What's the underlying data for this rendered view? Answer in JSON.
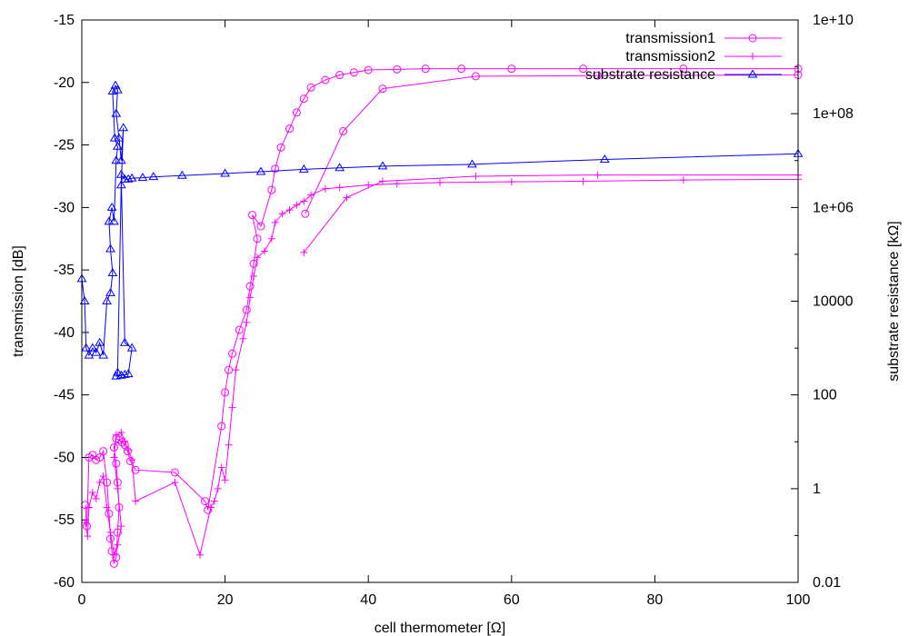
{
  "chart_data": {
    "type": "line",
    "title": "",
    "xlabel": "cell thermometer [Ω]",
    "ylabel": "transmission [dB]",
    "y2label": "substrate resistance [kΩ]",
    "xlim": [
      0,
      100
    ],
    "ylim": [
      -60,
      -15
    ],
    "y2lim": [
      0.01,
      10000000000
    ],
    "y2scale": "log",
    "grid": false,
    "legend_position": "top-right",
    "xticks": [
      "0",
      "20",
      "40",
      "60",
      "80",
      "100"
    ],
    "yticks": [
      "-15",
      "-20",
      "-25",
      "-30",
      "-35",
      "-40",
      "-45",
      "-50",
      "-55",
      "-60"
    ],
    "y2ticks": [
      "1e+10",
      "1e+08",
      "1e+06",
      "10000",
      "100",
      "1",
      "0.01"
    ],
    "series": [
      {
        "name": "transmission1",
        "axis": "y",
        "color": "#ff00ff",
        "marker": "circle",
        "points": [
          [
            0.5,
            -53.8
          ],
          [
            0.7,
            -55.5
          ],
          [
            1.0,
            -50.0
          ],
          [
            1.5,
            -49.8
          ],
          [
            2.0,
            -50.2
          ],
          [
            2.5,
            -50.0
          ],
          [
            3.0,
            -49.5
          ],
          [
            3.5,
            -52.0
          ],
          [
            3.8,
            -54.5
          ],
          [
            4.0,
            -56.5
          ],
          [
            4.2,
            -57.5
          ],
          [
            4.5,
            -58.5
          ],
          [
            4.8,
            -58.0
          ],
          [
            5.0,
            -56.0
          ],
          [
            5.2,
            -54.0
          ],
          [
            5.0,
            -52.0
          ],
          [
            4.8,
            -50.5
          ],
          [
            4.5,
            -49.2
          ],
          [
            4.8,
            -48.5
          ],
          [
            5.2,
            -48.6
          ],
          [
            5.6,
            -48.8
          ],
          [
            6.0,
            -49.0
          ],
          [
            6.4,
            -49.5
          ],
          [
            6.8,
            -50.3
          ],
          [
            7.5,
            -51.0
          ],
          [
            13.0,
            -51.2
          ],
          [
            17.2,
            -53.5
          ],
          [
            17.6,
            -54.2
          ],
          [
            19.5,
            -47.5
          ],
          [
            20.0,
            -44.8
          ],
          [
            20.5,
            -43.0
          ],
          [
            21.0,
            -41.7
          ],
          [
            22.0,
            -39.8
          ],
          [
            23.0,
            -38.2
          ],
          [
            23.5,
            -36.3
          ],
          [
            24.0,
            -34.5
          ],
          [
            24.5,
            -32.5
          ],
          [
            23.8,
            -30.6
          ],
          [
            25.0,
            -31.5
          ],
          [
            26.5,
            -28.6
          ],
          [
            27.0,
            -26.9
          ],
          [
            27.8,
            -25.2
          ],
          [
            29.0,
            -23.7
          ],
          [
            30.0,
            -22.4
          ],
          [
            31.0,
            -21.3
          ],
          [
            32.0,
            -20.4
          ],
          [
            34.0,
            -19.8
          ],
          [
            36.0,
            -19.4
          ],
          [
            38.0,
            -19.2
          ],
          [
            40.0,
            -19.0
          ],
          [
            44.0,
            -18.95
          ],
          [
            48.0,
            -18.9
          ],
          [
            53.0,
            -18.9
          ],
          [
            60.0,
            -18.9
          ],
          [
            70.0,
            -18.9
          ],
          [
            84.0,
            -18.9
          ],
          [
            100.0,
            -18.9
          ],
          [
            100.0,
            -19.4
          ],
          [
            72.0,
            -19.45
          ],
          [
            55.0,
            -19.5
          ],
          [
            42.0,
            -20.5
          ],
          [
            36.5,
            -23.9
          ],
          [
            31.2,
            -30.5
          ]
        ]
      },
      {
        "name": "transmission2",
        "axis": "y",
        "color": "#ff00ff",
        "marker": "plus",
        "points": [
          [
            0.5,
            -55.2
          ],
          [
            0.8,
            -56.3
          ],
          [
            1.0,
            -54.0
          ],
          [
            1.5,
            -52.8
          ],
          [
            2.0,
            -53.3
          ],
          [
            2.5,
            -52.0
          ],
          [
            3.0,
            -51.5
          ],
          [
            3.5,
            -54.0
          ],
          [
            4.0,
            -56.0
          ],
          [
            4.5,
            -57.8
          ],
          [
            5.0,
            -57.0
          ],
          [
            5.5,
            -55.5
          ],
          [
            5.0,
            -52.5
          ],
          [
            4.5,
            -50.0
          ],
          [
            4.8,
            -48.2
          ],
          [
            5.5,
            -48.0
          ],
          [
            6.0,
            -48.7
          ],
          [
            6.5,
            -49.4
          ],
          [
            7.0,
            -50.2
          ],
          [
            7.5,
            -53.5
          ],
          [
            13.0,
            -52.0
          ],
          [
            16.5,
            -57.8
          ],
          [
            18.0,
            -54.0
          ],
          [
            18.5,
            -53.5
          ],
          [
            19.0,
            -52.5
          ],
          [
            19.5,
            -50.8
          ],
          [
            20.0,
            -51.8
          ],
          [
            20.5,
            -49.0
          ],
          [
            21.0,
            -46.0
          ],
          [
            21.5,
            -43.0
          ],
          [
            22.5,
            -40.5
          ],
          [
            23.0,
            -39.2
          ],
          [
            23.5,
            -37.2
          ],
          [
            24.0,
            -35.5
          ],
          [
            24.5,
            -34.0
          ],
          [
            25.5,
            -33.5
          ],
          [
            26.5,
            -32.5
          ],
          [
            27.0,
            -31.2
          ],
          [
            28.0,
            -30.5
          ],
          [
            29.0,
            -30.2
          ],
          [
            30.0,
            -29.8
          ],
          [
            31.0,
            -29.5
          ],
          [
            32.0,
            -29.0
          ],
          [
            34.0,
            -28.5
          ],
          [
            36.0,
            -28.4
          ],
          [
            40.0,
            -28.2
          ],
          [
            44.0,
            -28.1
          ],
          [
            50.0,
            -28.0
          ],
          [
            60.0,
            -27.95
          ],
          [
            70.0,
            -27.9
          ],
          [
            84.0,
            -27.8
          ],
          [
            100.0,
            -27.75
          ],
          [
            100.0,
            -27.4
          ],
          [
            72.0,
            -27.4
          ],
          [
            55.0,
            -27.5
          ],
          [
            42.0,
            -27.9
          ],
          [
            37.0,
            -29.2
          ],
          [
            31.0,
            -33.6
          ]
        ]
      },
      {
        "name": "substrate resistance",
        "axis": "y2",
        "color": "#0000ff",
        "marker": "triangle",
        "points": [
          [
            0.0,
            30000
          ],
          [
            0.4,
            10000
          ],
          [
            0.6,
            1000
          ],
          [
            1.0,
            700
          ],
          [
            1.5,
            1000
          ],
          [
            2.0,
            800
          ],
          [
            2.5,
            1300
          ],
          [
            3.0,
            700
          ],
          [
            3.5,
            10000
          ],
          [
            4.0,
            15000
          ],
          [
            4.3,
            40000
          ],
          [
            4.0,
            130000
          ],
          [
            3.8,
            500000
          ],
          [
            4.2,
            1000000
          ],
          [
            4.5,
            500000
          ],
          [
            4.8,
            10000000
          ],
          [
            5.0,
            20000000
          ],
          [
            4.6,
            30000000
          ],
          [
            4.3,
            300000000
          ],
          [
            4.7,
            400000000
          ],
          [
            5.0,
            320000000
          ],
          [
            4.8,
            100000000
          ],
          [
            5.2,
            30000000
          ],
          [
            5.5,
            10000000
          ],
          [
            5.8,
            50000000
          ],
          [
            5.5,
            3000000
          ],
          [
            5.0,
            300
          ],
          [
            4.8,
            250
          ],
          [
            5.5,
            260
          ],
          [
            6.0,
            270
          ],
          [
            6.5,
            280
          ],
          [
            7.0,
            1000
          ],
          [
            6.0,
            1300
          ],
          [
            5.5,
            5000000
          ],
          [
            6.0,
            4000000
          ],
          [
            6.5,
            4000000
          ],
          [
            7.0,
            4200000
          ],
          [
            8.5,
            4300000
          ],
          [
            10.0,
            4500000
          ],
          [
            14.0,
            4800000
          ],
          [
            20.0,
            5300000
          ],
          [
            25.0,
            5800000
          ],
          [
            31.0,
            6500000
          ],
          [
            36.0,
            7000000
          ],
          [
            42.0,
            7600000
          ],
          [
            54.5,
            8300000
          ],
          [
            73.0,
            10600000
          ],
          [
            100.0,
            14000000
          ]
        ]
      }
    ]
  }
}
